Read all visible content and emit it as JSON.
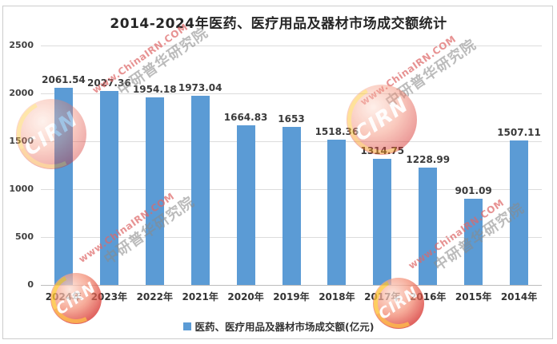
{
  "title": "2014-2024年医药、医疗用品及器材市场成交额统计",
  "legend": {
    "label": "医药、医疗用品及器材市场成交额(亿元)"
  },
  "watermark": {
    "url_text": "www.ChinaIRN.COM",
    "org_text": "中研普华研究院",
    "logo_text": "CIRN"
  },
  "colors": {
    "bar": "#5b9bd5",
    "grid": "#dcdcdc",
    "axis": "#bdbdbd",
    "tick_text": "#404040",
    "title_text": "#262626",
    "border": "#cccccc"
  },
  "chart_data": {
    "type": "bar",
    "title": "2014-2024年医药、医疗用品及器材市场成交额统计",
    "categories": [
      "2024年",
      "2023年",
      "2022年",
      "2021年",
      "2020年",
      "2019年",
      "2018年",
      "2017年",
      "2016年",
      "2015年",
      "2014年"
    ],
    "series": [
      {
        "name": "医药、医疗用品及器材市场成交额(亿元)",
        "color": "#5b9bd5",
        "values": [
          2061.54,
          2027.36,
          1954.18,
          1973.04,
          1664.83,
          1653,
          1518.36,
          1314.75,
          1228.99,
          901.09,
          1507.11
        ],
        "labels": [
          "2061.54",
          "2027.36",
          "1954.18",
          "1973.04",
          "1664.83",
          "1653",
          "1518.36",
          "1314.75",
          "1228.99",
          "901.09",
          "1507.11"
        ]
      }
    ],
    "xlabel": "",
    "ylabel": "",
    "ylim": [
      0,
      2500
    ],
    "yticks": [
      0,
      500,
      1000,
      1500,
      2000,
      2500
    ],
    "grid": true,
    "legend_position": "bottom"
  }
}
